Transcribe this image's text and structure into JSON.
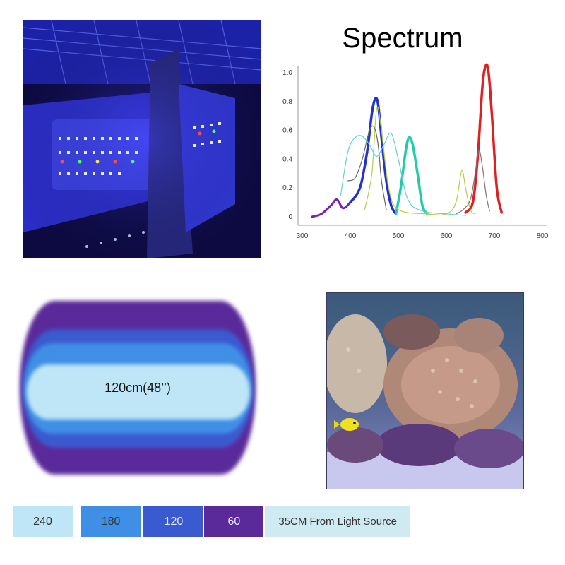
{
  "spectrum": {
    "title": "Spectrum",
    "chart_data": {
      "type": "line",
      "title": "Spectrum",
      "xlabel": "",
      "ylabel": "",
      "xlim": [
        300,
        800
      ],
      "ylim": [
        0,
        1.0
      ],
      "x_ticks": [
        "300",
        "400",
        "500",
        "600",
        "700",
        "800"
      ],
      "y_ticks": [
        "0",
        "0.2",
        "0.4",
        "0.6",
        "0.8",
        "1.0"
      ],
      "grid": false,
      "series": [
        {
          "color": "#7a1fb3",
          "x": [
            320,
            340,
            360,
            372,
            385,
            400
          ],
          "y": [
            0.0,
            0.02,
            0.08,
            0.12,
            0.06,
            0.1
          ]
        },
        {
          "color": "#2233cc",
          "x": [
            400,
            420,
            435,
            445,
            452,
            458,
            465,
            475,
            485,
            495
          ],
          "y": [
            0.1,
            0.2,
            0.45,
            0.72,
            0.82,
            0.78,
            0.55,
            0.25,
            0.08,
            0.02
          ]
        },
        {
          "color": "#22ccaa",
          "x": [
            495,
            505,
            515,
            522,
            530,
            540,
            550,
            560
          ],
          "y": [
            0.02,
            0.2,
            0.45,
            0.55,
            0.5,
            0.3,
            0.08,
            0.02
          ]
        },
        {
          "color": "#e02020",
          "x": [
            640,
            655,
            665,
            675,
            682,
            688,
            695,
            705,
            715
          ],
          "y": [
            0.03,
            0.1,
            0.4,
            0.9,
            1.05,
            1.0,
            0.7,
            0.2,
            0.03
          ]
        },
        {
          "color": "#66ccdd",
          "x": [
            380,
            395,
            410,
            425,
            440,
            455,
            470,
            485,
            500,
            520,
            550,
            600,
            640
          ],
          "y": [
            0.15,
            0.45,
            0.55,
            0.56,
            0.5,
            0.42,
            0.5,
            0.58,
            0.4,
            0.12,
            0.04,
            0.02,
            0.01
          ]
        },
        {
          "color": "#b8cc44",
          "x": [
            430,
            445,
            455,
            465,
            480,
            500,
            560,
            600,
            620,
            632,
            640,
            650,
            660
          ],
          "y": [
            0.05,
            0.3,
            0.75,
            0.6,
            0.2,
            0.05,
            0.02,
            0.02,
            0.1,
            0.32,
            0.2,
            0.05,
            0.02
          ]
        },
        {
          "color": "#666666",
          "x": [
            395,
            410,
            425,
            440,
            450,
            458,
            465,
            475
          ],
          "y": [
            0.25,
            0.27,
            0.4,
            0.6,
            0.62,
            0.5,
            0.25,
            0.05
          ]
        },
        {
          "color": "#777777",
          "x": [
            620,
            635,
            650,
            660,
            668,
            675,
            683,
            690
          ],
          "y": [
            0.02,
            0.05,
            0.12,
            0.3,
            0.46,
            0.35,
            0.15,
            0.04
          ]
        }
      ]
    }
  },
  "par": {
    "label": "120cm(48’’)",
    "colors": {
      "outer": "#5a2a9a",
      "ring2": "#3a5ad0",
      "ring3": "#3f8fe6",
      "inner": "#bfe6f7"
    }
  },
  "legend": {
    "items": [
      {
        "value": "240",
        "color": "#bfe6f7"
      },
      {
        "value": "180",
        "color": "#3f8fe6"
      },
      {
        "value": "120",
        "color": "#3a5ad0"
      },
      {
        "value": "60",
        "color": "#5a2a9a"
      }
    ],
    "note": "35CM From Light Source",
    "note_color": "#cfeaf2"
  }
}
